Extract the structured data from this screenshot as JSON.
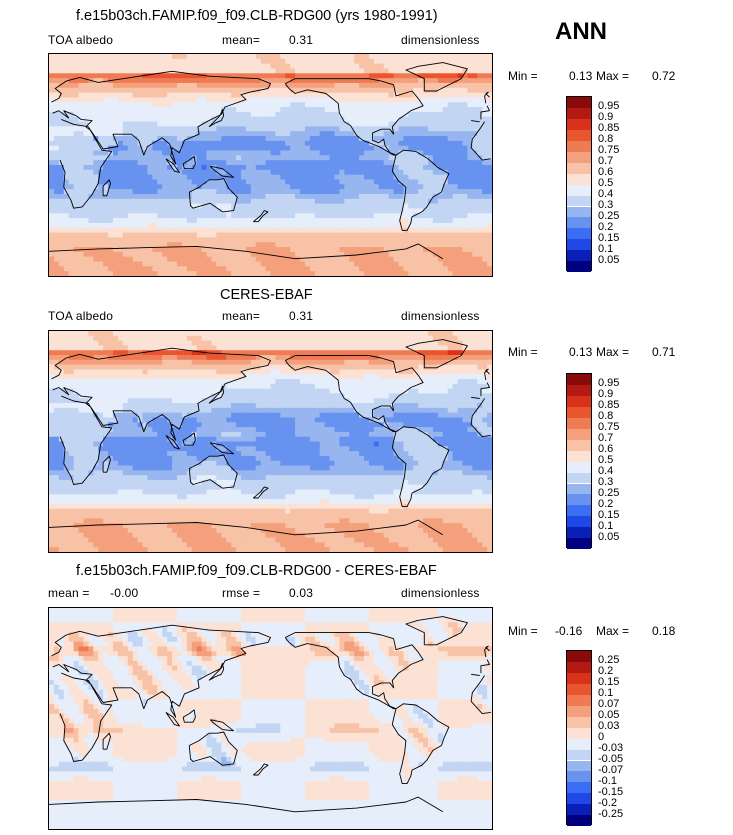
{
  "season": "ANN",
  "panels": [
    {
      "title": "f.e15b03ch.FAMIP.f09_f09.CLB-RDG00 (yrs 1980-1991)",
      "left_label": "TOA albedo",
      "mean_label": "mean=",
      "mean_value": "0.31",
      "units": "dimensionless",
      "min_label": "Min =",
      "min_value": "0.13",
      "max_label": "Max =",
      "max_value": "0.72",
      "field": "model",
      "colorbar": {
        "colors": [
          "#000080",
          "#0a1fb8",
          "#1f48e6",
          "#3b6ef2",
          "#6892f0",
          "#97b5ef",
          "#c2d5f3",
          "#e6eefb",
          "#fbe2d5",
          "#f7c2a6",
          "#f4a07c",
          "#ef7b54",
          "#e9552f",
          "#d8321a",
          "#b31a12",
          "#8a0a0a"
        ],
        "labels": [
          "0.05",
          "0.1",
          "0.15",
          "0.2",
          "0.25",
          "0.3",
          "0.4",
          "0.5",
          "0.6",
          "0.7",
          "0.75",
          "0.8",
          "0.85",
          "0.9",
          "0.95"
        ]
      }
    },
    {
      "title": "CERES-EBAF",
      "left_label": "TOA albedo",
      "mean_label": "mean=",
      "mean_value": "0.31",
      "units": "dimensionless",
      "min_label": "Min =",
      "min_value": "0.13",
      "max_label": "Max =",
      "max_value": "0.71",
      "field": "obs",
      "colorbar": {
        "colors": [
          "#000080",
          "#0a1fb8",
          "#1f48e6",
          "#3b6ef2",
          "#6892f0",
          "#97b5ef",
          "#c2d5f3",
          "#e6eefb",
          "#fbe2d5",
          "#f7c2a6",
          "#f4a07c",
          "#ef7b54",
          "#e9552f",
          "#d8321a",
          "#b31a12",
          "#8a0a0a"
        ],
        "labels": [
          "0.05",
          "0.1",
          "0.15",
          "0.2",
          "0.25",
          "0.3",
          "0.4",
          "0.5",
          "0.6",
          "0.7",
          "0.75",
          "0.8",
          "0.85",
          "0.9",
          "0.95"
        ]
      }
    },
    {
      "title": "f.e15b03ch.FAMIP.f09_f09.CLB-RDG00 - CERES-EBAF",
      "left_label": "mean =",
      "mean_label": "rmse =",
      "left_value": "-0.00",
      "mean_value": "0.03",
      "units": "dimensionless",
      "min_label": "Min =",
      "min_value": "-0.16",
      "max_label": "Max =",
      "max_value": "0.18",
      "field": "diff",
      "colorbar": {
        "colors": [
          "#000080",
          "#0a1fb8",
          "#1f48e6",
          "#3b6ef2",
          "#6892f0",
          "#97b5ef",
          "#c2d5f3",
          "#e6eefb",
          "#fbe2d5",
          "#f7c2a6",
          "#f4a07c",
          "#ef7b54",
          "#e9552f",
          "#d8321a",
          "#b31a12",
          "#8a0a0a"
        ],
        "labels": [
          "-0.25",
          "-0.2",
          "-0.15",
          "-0.1",
          "-0.07",
          "-0.05",
          "-0.03",
          "0",
          "0.03",
          "0.05",
          "0.07",
          "0.1",
          "0.15",
          "0.2",
          "0.25"
        ]
      }
    }
  ]
}
